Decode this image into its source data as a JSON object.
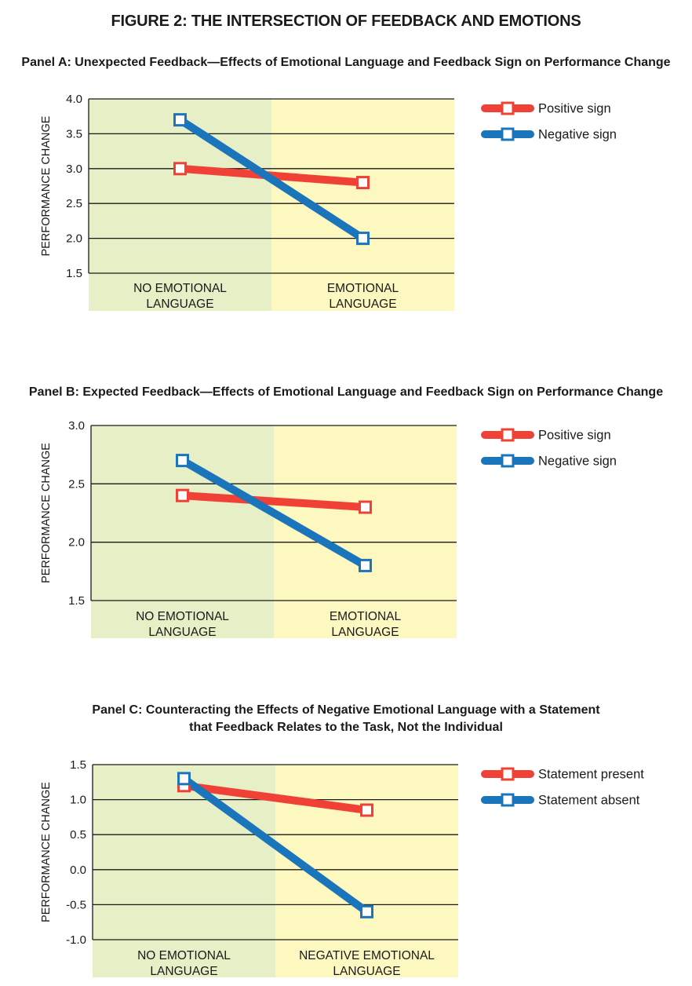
{
  "figure_title": "FIGURE 2: THE INTERSECTION OF FEEDBACK AND EMOTIONS",
  "colors": {
    "positive": "#ef4136",
    "negative": "#1b75bb",
    "region_left": "#e6efc6",
    "region_right": "#fdf8c0"
  },
  "chart_data": [
    {
      "type": "line",
      "title": "Panel A: Unexpected Feedback—Effects of Emotional Language and Feedback Sign on Performance Change",
      "title_lines": [
        "Panel A: Unexpected Feedback—Effects of Emotional Language and Feedback Sign on Performance Change"
      ],
      "ylabel": "PERFORMANCE CHANGE",
      "ylim": [
        1.5,
        4.0
      ],
      "yticks": [
        "1.5",
        "2.0",
        "2.5",
        "3.0",
        "3.5",
        "4.0"
      ],
      "ytick_values": [
        1.5,
        2.0,
        2.5,
        3.0,
        3.5,
        4.0
      ],
      "categories": [
        [
          "NO EMOTIONAL",
          "LANGUAGE"
        ],
        [
          "EMOTIONAL",
          "LANGUAGE"
        ]
      ],
      "series": [
        {
          "name": "Positive sign",
          "values": [
            3.0,
            2.8
          ]
        },
        {
          "name": "Negative sign",
          "values": [
            3.7,
            2.0
          ]
        }
      ],
      "legend": "top-right",
      "grid": true
    },
    {
      "type": "line",
      "title": "Panel B: Expected Feedback—Effects of Emotional Language and Feedback Sign on Performance Change",
      "title_lines": [
        "Panel B: Expected Feedback—Effects of Emotional Language and Feedback Sign on Performance Change"
      ],
      "ylabel": "PERFORMANCE CHANGE",
      "ylim": [
        1.5,
        3.0
      ],
      "yticks": [
        "1.5",
        "2.0",
        "2.5",
        "3.0"
      ],
      "ytick_values": [
        1.5,
        2.0,
        2.5,
        3.0
      ],
      "categories": [
        [
          "NO EMOTIONAL",
          "LANGUAGE"
        ],
        [
          "EMOTIONAL",
          "LANGUAGE"
        ]
      ],
      "series": [
        {
          "name": "Positive sign",
          "values": [
            2.4,
            2.3
          ]
        },
        {
          "name": "Negative sign",
          "values": [
            2.7,
            1.8
          ]
        }
      ],
      "legend": "top-right",
      "grid": true
    },
    {
      "type": "line",
      "title": "Panel C: Counteracting the Effects of Negative Emotional Language with a Statement that Feedback Relates to the Task, Not the Individual",
      "title_lines": [
        "Panel C: Counteracting the Effects of Negative Emotional Language with a Statement",
        "that Feedback Relates to the Task, Not the Individual"
      ],
      "ylabel": "PERFORMANCE CHANGE",
      "ylim": [
        -1.0,
        1.5
      ],
      "yticks": [
        "-1.0",
        "-0.5",
        "0.0",
        "0.5",
        "1.0",
        "1.5"
      ],
      "ytick_values": [
        -1.0,
        -0.5,
        0.0,
        0.5,
        1.0,
        1.5
      ],
      "categories": [
        [
          "NO EMOTIONAL",
          "LANGUAGE"
        ],
        [
          "NEGATIVE EMOTIONAL",
          "LANGUAGE"
        ]
      ],
      "series": [
        {
          "name": "Statement present",
          "values": [
            1.2,
            0.85
          ]
        },
        {
          "name": "Statement absent",
          "values": [
            1.3,
            -0.6
          ]
        }
      ],
      "legend": "top-right",
      "grid": true
    }
  ]
}
